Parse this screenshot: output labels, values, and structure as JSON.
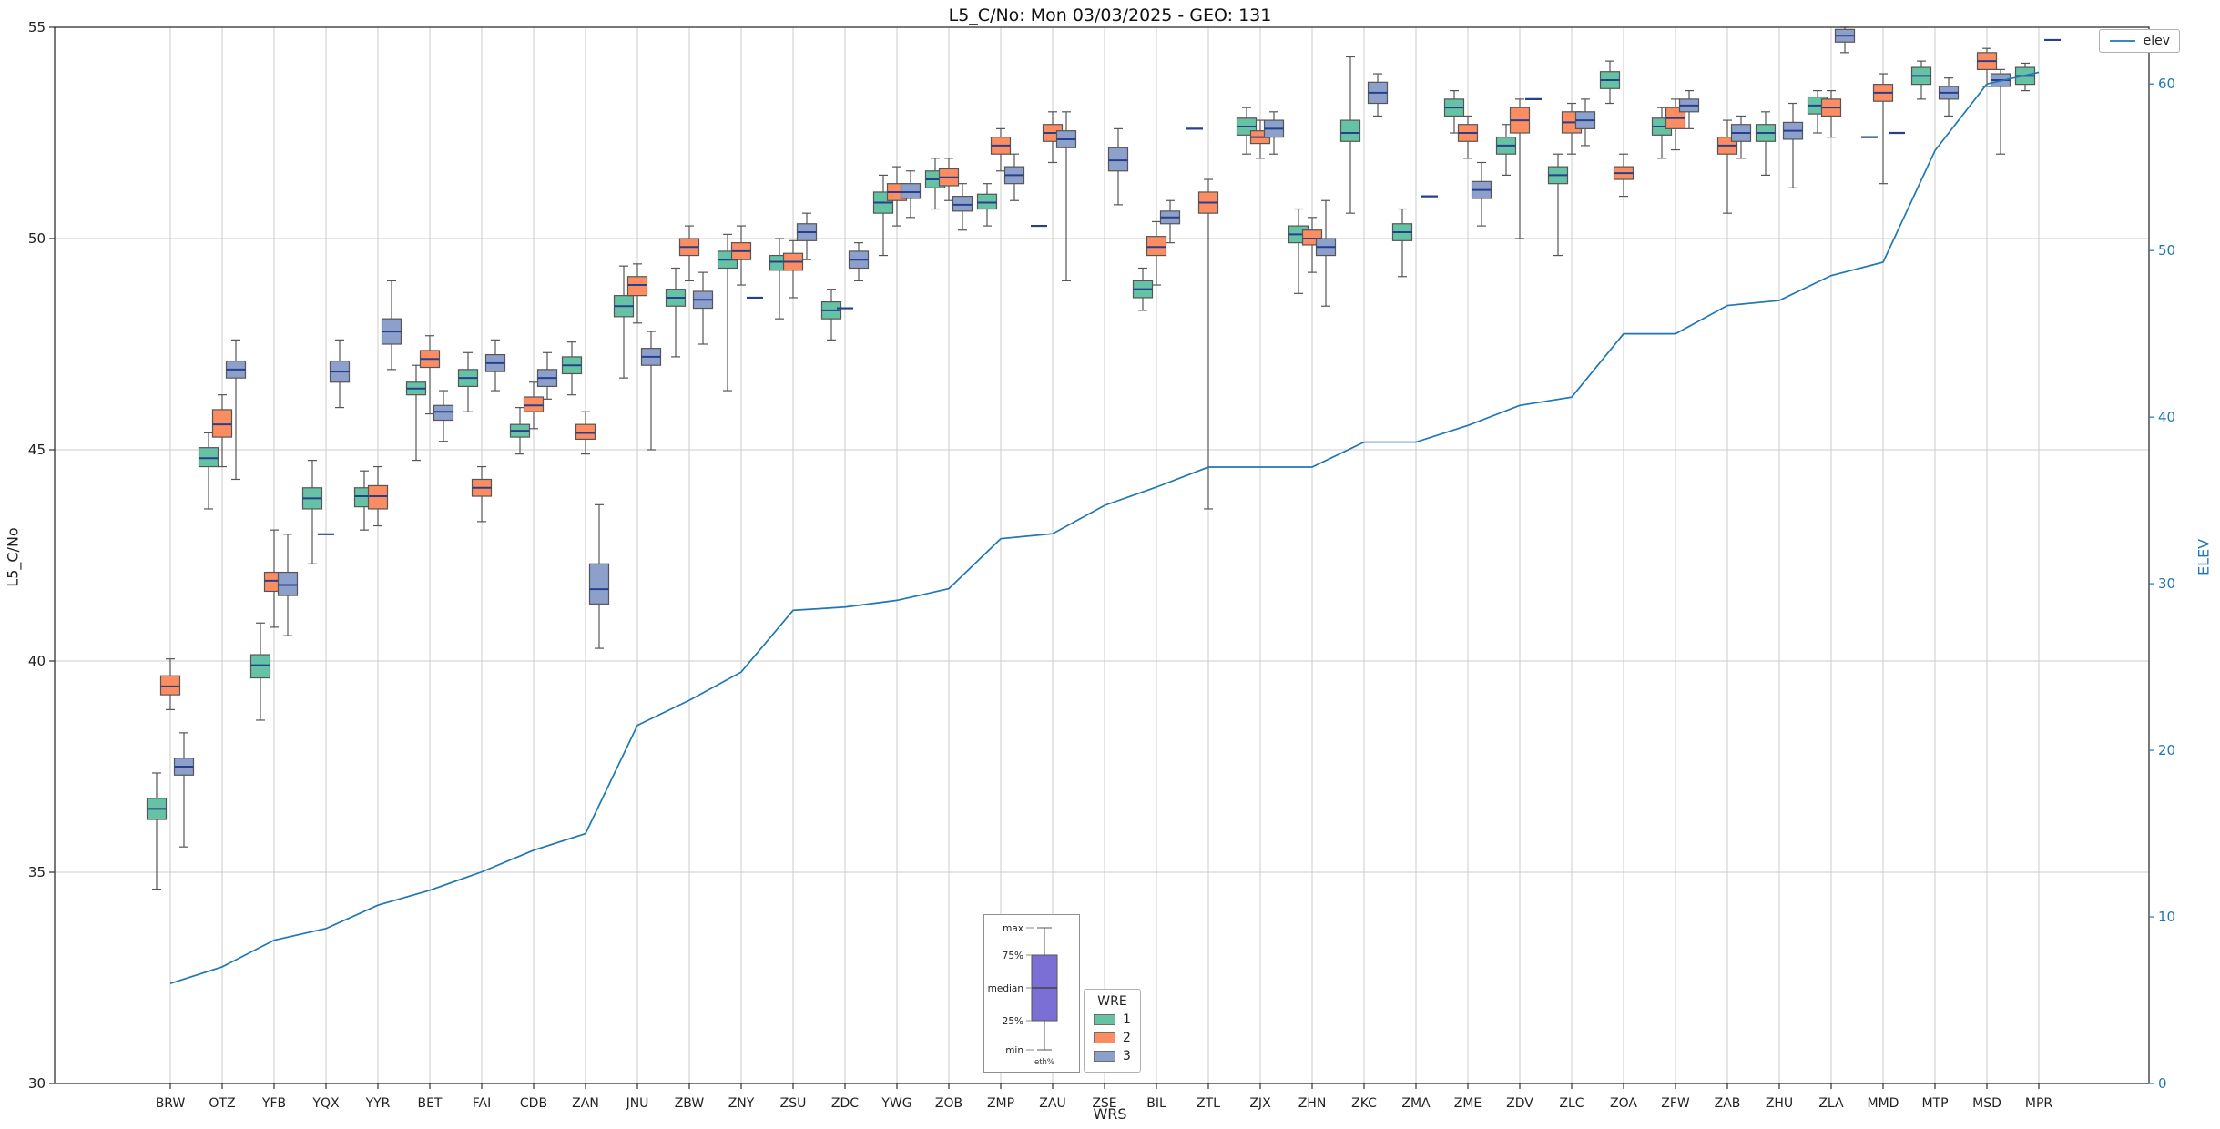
{
  "title": "L5_C/No: Mon 03/03/2025 - GEO: 131",
  "axes": {
    "left_label": "L5_C/No",
    "right_label": "ELEV",
    "x_label": "WRS",
    "left_ticks": [
      30,
      35,
      40,
      45,
      50,
      55
    ],
    "right_ticks": [
      0,
      10,
      20,
      30,
      40,
      50,
      60
    ]
  },
  "legend_elev": {
    "label": "elev"
  },
  "legend_wre": {
    "title": "WRE",
    "entries": [
      {
        "label": "1",
        "color": "#66c2a5"
      },
      {
        "label": "2",
        "color": "#fc8d62"
      },
      {
        "label": "3",
        "color": "#8da0cb"
      }
    ]
  },
  "inset": {
    "box_color": "#7b6fd6",
    "labels": {
      "max": "max",
      "p75": "75%",
      "median": "median",
      "p25": "25%",
      "min": "min",
      "bottom": "eth%"
    }
  },
  "colors": {
    "grid": "#cccccc",
    "axis": "#2f2f2f",
    "box_edge": "#555555",
    "median": "#27408b",
    "elev": "#1f77b4"
  },
  "chart_data": {
    "type": "boxplot",
    "title": "L5_C/No: Mon 03/03/2025 - GEO: 131",
    "xlabel": "WRS",
    "ylabel": "L5_C/No",
    "y2label": "ELEV",
    "ylim": [
      30,
      55
    ],
    "y2lim": [
      0,
      63.4
    ],
    "grid": true,
    "legend_positions": {
      "elev": "upper right",
      "wre": "lower center"
    },
    "categories": [
      "BRW",
      "OTZ",
      "YFB",
      "YQX",
      "YYR",
      "BET",
      "FAI",
      "CDB",
      "ZAN",
      "JNU",
      "ZBW",
      "ZNY",
      "ZSU",
      "ZDC",
      "YWG",
      "ZOB",
      "ZMP",
      "ZAU",
      "ZSE",
      "BIL",
      "ZTL",
      "ZJX",
      "ZHN",
      "ZKC",
      "ZMA",
      "ZME",
      "ZDV",
      "ZLC",
      "ZOA",
      "ZFW",
      "ZAB",
      "ZHU",
      "ZLA",
      "MMD",
      "MTP",
      "MSD",
      "MPR"
    ],
    "box_format": [
      "median",
      "q1",
      "q3",
      "whisker_low",
      "whisker_high"
    ],
    "series": [
      {
        "name": "1",
        "color": "#66c2a5",
        "boxes": [
          [
            36.5,
            36.25,
            36.75,
            34.6,
            37.35
          ],
          [
            44.8,
            44.6,
            45.05,
            43.6,
            45.4
          ],
          [
            39.9,
            39.6,
            40.15,
            38.6,
            40.9
          ],
          [
            43.85,
            43.6,
            44.1,
            42.3,
            44.75
          ],
          [
            43.9,
            43.65,
            44.1,
            43.1,
            44.5
          ],
          [
            46.45,
            46.3,
            46.6,
            44.75,
            47.0
          ],
          [
            46.7,
            46.5,
            46.9,
            45.9,
            47.3
          ],
          [
            45.45,
            45.3,
            45.6,
            44.9,
            46.0
          ],
          [
            47.0,
            46.8,
            47.2,
            46.3,
            47.55
          ],
          [
            48.4,
            48.15,
            48.65,
            46.7,
            49.35
          ],
          [
            48.6,
            48.4,
            48.8,
            47.2,
            49.3
          ],
          [
            49.5,
            49.3,
            49.7,
            46.4,
            50.1
          ],
          [
            49.45,
            49.25,
            49.6,
            48.1,
            50.0
          ],
          [
            48.3,
            48.1,
            48.5,
            47.6,
            48.8
          ],
          [
            50.85,
            50.6,
            51.1,
            49.6,
            51.5
          ],
          [
            51.4,
            51.2,
            51.6,
            50.7,
            51.9
          ],
          [
            50.85,
            50.7,
            51.05,
            50.3,
            51.3
          ],
          [
            50.3,
            50.3,
            50.3,
            50.3,
            50.3
          ],
          null,
          [
            48.8,
            48.6,
            49.0,
            48.3,
            49.3
          ],
          [
            52.6,
            52.6,
            52.6,
            52.6,
            52.6
          ],
          [
            52.65,
            52.45,
            52.85,
            52.0,
            53.1
          ],
          [
            50.1,
            49.9,
            50.3,
            48.7,
            50.7
          ],
          [
            52.5,
            52.3,
            52.8,
            50.6,
            54.3
          ],
          [
            50.15,
            49.95,
            50.35,
            49.1,
            50.7
          ],
          [
            53.1,
            52.9,
            53.3,
            52.5,
            53.5
          ],
          [
            52.2,
            52.0,
            52.4,
            51.5,
            52.7
          ],
          [
            51.5,
            51.3,
            51.7,
            49.6,
            52.0
          ],
          [
            53.75,
            53.55,
            53.95,
            53.2,
            54.2
          ],
          [
            52.65,
            52.45,
            52.85,
            51.9,
            53.1
          ],
          null,
          [
            52.5,
            52.3,
            52.7,
            51.5,
            53.0
          ],
          [
            53.15,
            52.95,
            53.35,
            52.5,
            53.5
          ],
          [
            52.4,
            52.4,
            52.4,
            52.4,
            52.4
          ],
          [
            53.85,
            53.65,
            54.05,
            53.3,
            54.2
          ],
          null,
          [
            53.85,
            53.65,
            54.05,
            53.5,
            54.15
          ]
        ]
      },
      {
        "name": "2",
        "color": "#fc8d62",
        "boxes": [
          [
            39.4,
            39.2,
            39.65,
            38.85,
            40.05
          ],
          [
            45.6,
            45.3,
            45.95,
            44.6,
            46.3
          ],
          [
            41.9,
            41.65,
            42.1,
            40.8,
            43.1
          ],
          [
            43.0,
            43.0,
            43.0,
            43.0,
            43.0
          ],
          [
            43.9,
            43.6,
            44.15,
            43.2,
            44.6
          ],
          [
            47.15,
            46.95,
            47.35,
            45.85,
            47.7
          ],
          [
            44.1,
            43.9,
            44.3,
            43.3,
            44.6
          ],
          [
            46.05,
            45.9,
            46.25,
            45.5,
            46.6
          ],
          [
            45.4,
            45.25,
            45.6,
            44.9,
            45.9
          ],
          [
            48.9,
            48.65,
            49.1,
            48.0,
            49.4
          ],
          [
            49.8,
            49.6,
            50.0,
            49.0,
            50.3
          ],
          [
            49.7,
            49.5,
            49.9,
            48.9,
            50.3
          ],
          [
            49.45,
            49.25,
            49.65,
            48.6,
            49.95
          ],
          [
            48.35,
            48.35,
            48.35,
            48.35,
            48.35
          ],
          [
            51.1,
            50.9,
            51.3,
            50.3,
            51.7
          ],
          [
            51.45,
            51.25,
            51.65,
            50.9,
            51.9
          ],
          [
            52.2,
            52.0,
            52.4,
            51.6,
            52.6
          ],
          [
            52.5,
            52.3,
            52.7,
            51.8,
            53.0
          ],
          null,
          [
            49.8,
            49.6,
            50.05,
            48.9,
            50.4
          ],
          [
            50.85,
            50.6,
            51.1,
            43.6,
            51.4
          ],
          [
            52.4,
            52.25,
            52.55,
            51.9,
            52.8
          ],
          [
            50.0,
            49.85,
            50.2,
            49.2,
            50.5
          ],
          null,
          null,
          [
            52.5,
            52.3,
            52.7,
            51.9,
            52.9
          ],
          [
            52.8,
            52.5,
            53.1,
            50.0,
            53.3
          ],
          [
            52.75,
            52.5,
            53.0,
            52.0,
            53.2
          ],
          [
            51.55,
            51.4,
            51.7,
            51.0,
            52.0
          ],
          [
            52.85,
            52.6,
            53.1,
            52.1,
            53.3
          ],
          [
            52.2,
            52.0,
            52.4,
            50.6,
            52.8
          ],
          null,
          [
            53.1,
            52.9,
            53.3,
            52.4,
            53.5
          ],
          [
            53.45,
            53.25,
            53.65,
            51.3,
            53.9
          ],
          null,
          [
            54.2,
            54.0,
            54.4,
            53.6,
            54.5
          ],
          null
        ]
      },
      {
        "name": "3",
        "color": "#8da0cb",
        "boxes": [
          [
            37.5,
            37.3,
            37.7,
            35.6,
            38.3
          ],
          [
            46.9,
            46.7,
            47.1,
            44.3,
            47.6
          ],
          [
            41.8,
            41.55,
            42.1,
            40.6,
            43.0
          ],
          [
            46.85,
            46.6,
            47.1,
            46.0,
            47.6
          ],
          [
            47.8,
            47.5,
            48.1,
            46.9,
            49.0
          ],
          [
            45.9,
            45.7,
            46.05,
            45.2,
            46.4
          ],
          [
            47.05,
            46.85,
            47.25,
            46.4,
            47.6
          ],
          [
            46.7,
            46.5,
            46.9,
            46.2,
            47.3
          ],
          [
            41.7,
            41.35,
            42.3,
            40.3,
            43.7
          ],
          [
            47.2,
            47.0,
            47.4,
            45.0,
            47.8
          ],
          [
            48.55,
            48.35,
            48.75,
            47.5,
            49.2
          ],
          [
            48.6,
            48.6,
            48.6,
            48.6,
            48.6
          ],
          [
            50.15,
            49.95,
            50.35,
            49.5,
            50.6
          ],
          [
            49.5,
            49.3,
            49.7,
            49.0,
            49.9
          ],
          [
            51.1,
            50.95,
            51.3,
            50.5,
            51.6
          ],
          [
            50.8,
            50.65,
            51.0,
            50.2,
            51.3
          ],
          [
            51.5,
            51.3,
            51.7,
            50.9,
            52.0
          ],
          [
            52.35,
            52.15,
            52.55,
            49.0,
            53.0
          ],
          [
            51.85,
            51.6,
            52.15,
            50.8,
            52.6
          ],
          [
            50.5,
            50.35,
            50.65,
            49.9,
            50.9
          ],
          null,
          [
            52.6,
            52.4,
            52.8,
            52.0,
            53.0
          ],
          [
            49.8,
            49.6,
            50.0,
            48.4,
            50.9
          ],
          [
            53.45,
            53.2,
            53.7,
            52.9,
            53.9
          ],
          [
            51.0,
            51.0,
            51.0,
            51.0,
            51.0
          ],
          [
            51.15,
            50.95,
            51.35,
            50.3,
            51.8
          ],
          [
            53.3,
            53.3,
            53.3,
            53.3,
            53.3
          ],
          [
            52.8,
            52.6,
            53.0,
            52.2,
            53.3
          ],
          null,
          [
            53.15,
            53.0,
            53.3,
            52.6,
            53.5
          ],
          [
            52.5,
            52.3,
            52.7,
            51.9,
            52.9
          ],
          [
            52.55,
            52.35,
            52.75,
            51.2,
            53.2
          ],
          [
            54.8,
            54.65,
            54.95,
            54.4,
            55.0
          ],
          [
            52.5,
            52.5,
            52.5,
            52.5,
            52.5
          ],
          [
            53.45,
            53.3,
            53.6,
            52.9,
            53.8
          ],
          [
            53.75,
            53.6,
            53.9,
            52.0,
            54.0
          ],
          [
            54.7,
            54.7,
            54.7,
            54.7,
            54.7
          ]
        ]
      }
    ],
    "elev_line": {
      "name": "elev",
      "color": "#1f77b4",
      "values": [
        6,
        7,
        8.6,
        9.3,
        10.7,
        11.6,
        12.7,
        14,
        15,
        21.5,
        23,
        24.7,
        28.4,
        28.6,
        29,
        29.7,
        32.7,
        33,
        34.7,
        35.8,
        37,
        37,
        37,
        38.5,
        38.5,
        39.5,
        40.7,
        41.2,
        45,
        45,
        46.7,
        47,
        48.5,
        49.3,
        56,
        60,
        60.7
      ]
    }
  }
}
